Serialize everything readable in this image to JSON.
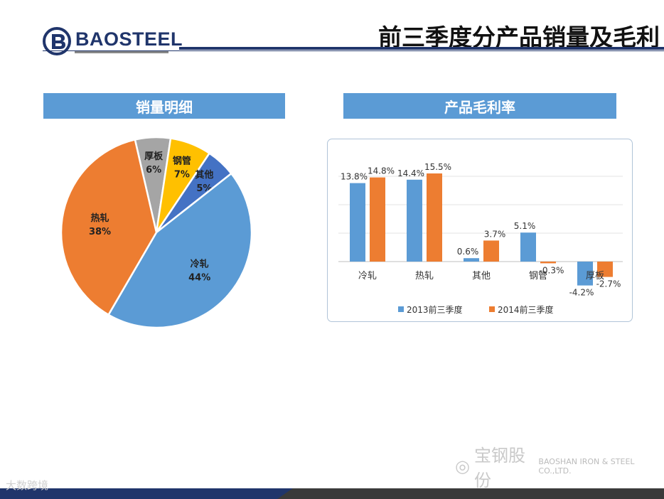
{
  "brand": {
    "name": "BAOSTEEL",
    "color": "#20356b"
  },
  "title": "前三季度分产品销量及毛利",
  "left_header": "销量明细",
  "right_header": "产品毛利率",
  "watermark": {
    "text": "宝钢股份",
    "sub": "BAOSHAN IRON & STEEL CO.,LTD."
  },
  "corner_text": "大数跨境",
  "chart_data": [
    {
      "type": "pie",
      "title": "",
      "slices": [
        {
          "label": "冷轧",
          "value": 44,
          "display": "44%",
          "color": "#5b9bd5"
        },
        {
          "label": "热轧",
          "value": 38,
          "display": "38%",
          "color": "#ed7d31"
        },
        {
          "label": "厚板",
          "value": 6,
          "display": "6%",
          "color": "#a5a5a5"
        },
        {
          "label": "钢管",
          "value": 7,
          "display": "7%",
          "color": "#ffc000"
        },
        {
          "label": "其他",
          "value": 5,
          "display": "5%",
          "color": "#4472c4"
        }
      ]
    },
    {
      "type": "bar",
      "title": "",
      "categories": [
        "冷轧",
        "热轧",
        "其他",
        "钢管",
        "厚板"
      ],
      "series": [
        {
          "name": "2013前三季度",
          "values": [
            13.8,
            14.4,
            0.6,
            5.1,
            -4.2
          ],
          "labels": [
            "13.8%",
            "14.4%",
            "0.6%",
            "5.1%",
            "-4.2%"
          ],
          "color": "#5b9bd5"
        },
        {
          "name": "2014前三季度",
          "values": [
            14.8,
            15.5,
            3.7,
            -0.3,
            -2.7
          ],
          "labels": [
            "14.8%",
            "15.5%",
            "3.7%",
            "-0.3%",
            "-2.7%"
          ],
          "color": "#ed7d31"
        }
      ],
      "ylim": [
        -6,
        16
      ],
      "grid": true,
      "legend": "bottom"
    }
  ]
}
